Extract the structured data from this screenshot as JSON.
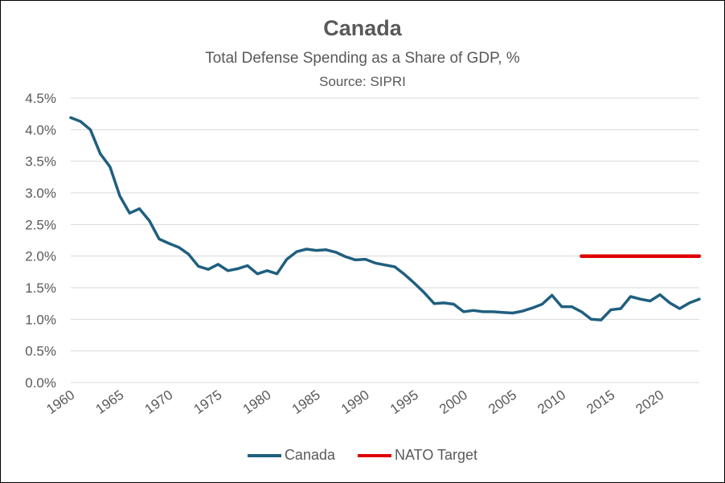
{
  "chart_data": {
    "type": "line",
    "title": "Canada",
    "subtitle": "Total Defense Spending as a Share of GDP, %",
    "source": "Source: SIPRI",
    "xlabel": "",
    "ylabel": "",
    "ylim": [
      0,
      4.5
    ],
    "yticks": [
      "0.0%",
      "0.5%",
      "1.0%",
      "1.5%",
      "2.0%",
      "2.5%",
      "3.0%",
      "3.5%",
      "4.0%",
      "4.5%"
    ],
    "xlim": [
      1960,
      2024
    ],
    "xticks": [
      "1960",
      "1965",
      "1970",
      "1975",
      "1980",
      "1985",
      "1990",
      "1995",
      "2000",
      "2005",
      "2010",
      "2015",
      "2020"
    ],
    "grid": "horizontal",
    "legend_position": "bottom",
    "series": [
      {
        "name": "Canada",
        "color": "#1f5f7f",
        "x": [
          1960,
          1961,
          1962,
          1963,
          1964,
          1965,
          1966,
          1967,
          1968,
          1969,
          1970,
          1971,
          1972,
          1973,
          1974,
          1975,
          1976,
          1977,
          1978,
          1979,
          1980,
          1981,
          1982,
          1983,
          1984,
          1985,
          1986,
          1987,
          1988,
          1989,
          1990,
          1991,
          1992,
          1993,
          1994,
          1995,
          1996,
          1997,
          1998,
          1999,
          2000,
          2001,
          2002,
          2003,
          2004,
          2005,
          2006,
          2007,
          2008,
          2009,
          2010,
          2011,
          2012,
          2013,
          2014,
          2015,
          2016,
          2017,
          2018,
          2019,
          2020,
          2021,
          2022,
          2023,
          2024
        ],
        "values": [
          4.19,
          4.13,
          4.0,
          3.62,
          3.41,
          2.95,
          2.68,
          2.75,
          2.56,
          2.27,
          2.2,
          2.14,
          2.03,
          1.84,
          1.79,
          1.87,
          1.77,
          1.8,
          1.85,
          1.72,
          1.77,
          1.72,
          1.95,
          2.07,
          2.11,
          2.09,
          2.1,
          2.06,
          1.99,
          1.94,
          1.95,
          1.89,
          1.86,
          1.83,
          1.71,
          1.57,
          1.42,
          1.25,
          1.26,
          1.24,
          1.12,
          1.14,
          1.12,
          1.12,
          1.11,
          1.1,
          1.13,
          1.18,
          1.24,
          1.38,
          1.2,
          1.2,
          1.12,
          1.0,
          0.99,
          1.15,
          1.17,
          1.36,
          1.32,
          1.29,
          1.39,
          1.26,
          1.17,
          1.26,
          1.32
        ]
      },
      {
        "name": "NATO Target",
        "color": "#e00000",
        "x": [
          2012,
          2024
        ],
        "values": [
          2.0,
          2.0
        ]
      }
    ]
  }
}
